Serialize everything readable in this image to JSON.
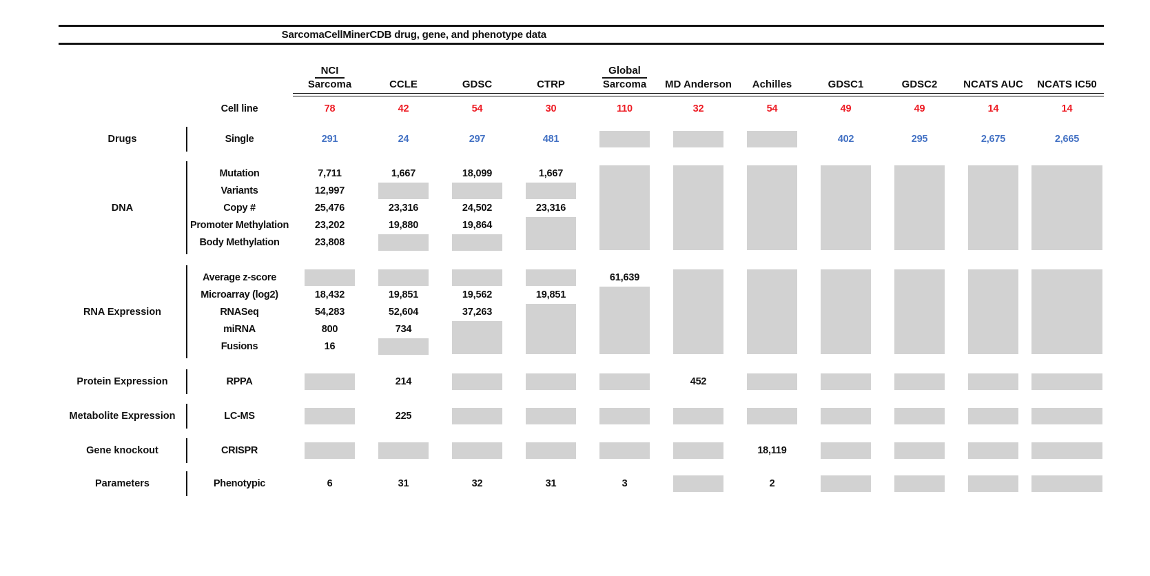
{
  "title": "SarcomaCellMinerCDB drug, gene, and phenotype data",
  "colors": {
    "cell_line_count": "#ed1c24",
    "drug_count": "#4472c4",
    "gene_count": "#111111",
    "no_data_box": "#d2d2d2",
    "rule": "#141414"
  },
  "columns": [
    {
      "id": "nci_sarcoma",
      "line1": "NCI",
      "line2": "Sarcoma"
    },
    {
      "id": "ccle",
      "line2": "CCLE"
    },
    {
      "id": "gdsc",
      "line2": "GDSC"
    },
    {
      "id": "ctrp",
      "line2": "CTRP"
    },
    {
      "id": "global_sarcoma",
      "line1": "Global",
      "line2": "Sarcoma"
    },
    {
      "id": "md_anderson",
      "line2": "MD Anderson"
    },
    {
      "id": "achilles",
      "line2": "Achilles"
    },
    {
      "id": "gdsc1",
      "line2": "GDSC1"
    },
    {
      "id": "gdsc2",
      "line2": "GDSC2"
    },
    {
      "id": "ncats_auc",
      "line2": "NCATS AUC"
    },
    {
      "id": "ncats_ic50",
      "line2": "NCATS IC50"
    }
  ],
  "cell_line_row": {
    "label": "Cell line",
    "values": [
      "78",
      "42",
      "54",
      "30",
      "110",
      "32",
      "54",
      "49",
      "49",
      "14",
      "14"
    ]
  },
  "sections": [
    {
      "group": "Drugs",
      "value_color": "blue",
      "rows": [
        "Single"
      ],
      "values": [
        [
          "291",
          "24",
          "297",
          "481",
          null,
          null,
          null,
          "402",
          "295",
          "2,675",
          "2,665"
        ]
      ]
    },
    {
      "group": "DNA",
      "rows": [
        "Mutation",
        "Variants",
        "Copy #",
        "Promoter Methylation",
        "Body Methylation"
      ],
      "values": [
        [
          "7,711",
          "1,667",
          "18,099",
          "1,667",
          null,
          null,
          null,
          null,
          null,
          null,
          null
        ],
        [
          "12,997",
          null,
          null,
          null,
          null,
          null,
          null,
          null,
          null,
          null,
          null
        ],
        [
          "25,476",
          "23,316",
          "24,502",
          "23,316",
          null,
          null,
          null,
          null,
          null,
          null,
          null
        ],
        [
          "23,202",
          "19,880",
          "19,864",
          null,
          null,
          null,
          null,
          null,
          null,
          null,
          null
        ],
        [
          "23,808",
          null,
          null,
          null,
          null,
          null,
          null,
          null,
          null,
          null,
          null
        ]
      ]
    },
    {
      "group": "RNA Expression",
      "rows": [
        "Average z-score",
        "Microarray (log2)",
        "RNASeq",
        "miRNA",
        "Fusions"
      ],
      "values": [
        [
          null,
          null,
          null,
          null,
          "61,639",
          null,
          null,
          null,
          null,
          null,
          null
        ],
        [
          "18,432",
          "19,851",
          "19,562",
          "19,851",
          null,
          null,
          null,
          null,
          null,
          null,
          null
        ],
        [
          "54,283",
          "52,604",
          "37,263",
          null,
          null,
          null,
          null,
          null,
          null,
          null,
          null
        ],
        [
          "800",
          "734",
          null,
          null,
          null,
          null,
          null,
          null,
          null,
          null,
          null
        ],
        [
          "16",
          null,
          null,
          null,
          null,
          null,
          null,
          null,
          null,
          null,
          null
        ]
      ]
    },
    {
      "group": "Protein Expression",
      "rows": [
        "RPPA"
      ],
      "values": [
        [
          null,
          "214",
          null,
          null,
          null,
          "452",
          null,
          null,
          null,
          null,
          null
        ]
      ]
    },
    {
      "group": "Metabolite Expression",
      "rows": [
        "LC-MS"
      ],
      "values": [
        [
          null,
          "225",
          null,
          null,
          null,
          null,
          null,
          null,
          null,
          null,
          null
        ]
      ]
    },
    {
      "group": "Gene knockout",
      "rows": [
        "CRISPR"
      ],
      "values": [
        [
          null,
          null,
          null,
          null,
          null,
          null,
          "18,119",
          null,
          null,
          null,
          null
        ]
      ]
    },
    {
      "group": "Parameters",
      "rows": [
        "Phenotypic"
      ],
      "values": [
        [
          "6",
          "31",
          "32",
          "31",
          "3",
          null,
          "2",
          null,
          null,
          null,
          null
        ]
      ]
    }
  ],
  "chart_data": {
    "type": "table",
    "title": "SarcomaCellMinerCDB drug, gene, and phenotype data",
    "columns": [
      "NCI Sarcoma",
      "CCLE",
      "GDSC",
      "CTRP",
      "Global Sarcoma",
      "MD Anderson",
      "Achilles",
      "GDSC1",
      "GDSC2",
      "NCATS AUC",
      "NCATS IC50"
    ],
    "cell_line_counts": [
      78,
      42,
      54,
      30,
      110,
      32,
      54,
      49,
      49,
      14,
      14
    ],
    "legend": "null means no data (gray box); drug counts shown blue, cell line counts red",
    "rows": [
      {
        "group": "Drugs",
        "label": "Single",
        "values": [
          291,
          24,
          297,
          481,
          null,
          null,
          null,
          402,
          295,
          2675,
          2665
        ]
      },
      {
        "group": "DNA",
        "label": "Mutation",
        "values": [
          7711,
          1667,
          18099,
          1667,
          null,
          null,
          null,
          null,
          null,
          null,
          null
        ]
      },
      {
        "group": "DNA",
        "label": "Variants",
        "values": [
          12997,
          null,
          null,
          null,
          null,
          null,
          null,
          null,
          null,
          null,
          null
        ]
      },
      {
        "group": "DNA",
        "label": "Copy #",
        "values": [
          25476,
          23316,
          24502,
          23316,
          null,
          null,
          null,
          null,
          null,
          null,
          null
        ]
      },
      {
        "group": "DNA",
        "label": "Promoter Methylation",
        "values": [
          23202,
          19880,
          19864,
          null,
          null,
          null,
          null,
          null,
          null,
          null,
          null
        ]
      },
      {
        "group": "DNA",
        "label": "Body Methylation",
        "values": [
          23808,
          null,
          null,
          null,
          null,
          null,
          null,
          null,
          null,
          null,
          null
        ]
      },
      {
        "group": "RNA Expression",
        "label": "Average z-score",
        "values": [
          null,
          null,
          null,
          null,
          61639,
          null,
          null,
          null,
          null,
          null,
          null
        ]
      },
      {
        "group": "RNA Expression",
        "label": "Microarray (log2)",
        "values": [
          18432,
          19851,
          19562,
          19851,
          null,
          null,
          null,
          null,
          null,
          null,
          null
        ]
      },
      {
        "group": "RNA Expression",
        "label": "RNASeq",
        "values": [
          54283,
          52604,
          37263,
          null,
          null,
          null,
          null,
          null,
          null,
          null,
          null
        ]
      },
      {
        "group": "RNA Expression",
        "label": "miRNA",
        "values": [
          800,
          734,
          null,
          null,
          null,
          null,
          null,
          null,
          null,
          null,
          null
        ]
      },
      {
        "group": "RNA Expression",
        "label": "Fusions",
        "values": [
          16,
          null,
          null,
          null,
          null,
          null,
          null,
          null,
          null,
          null,
          null
        ]
      },
      {
        "group": "Protein Expression",
        "label": "RPPA",
        "values": [
          null,
          214,
          null,
          null,
          null,
          452,
          null,
          null,
          null,
          null,
          null
        ]
      },
      {
        "group": "Metabolite Expression",
        "label": "LC-MS",
        "values": [
          null,
          225,
          null,
          null,
          null,
          null,
          null,
          null,
          null,
          null,
          null
        ]
      },
      {
        "group": "Gene knockout",
        "label": "CRISPR",
        "values": [
          null,
          null,
          null,
          null,
          null,
          null,
          18119,
          null,
          null,
          null,
          null
        ]
      },
      {
        "group": "Parameters",
        "label": "Phenotypic",
        "values": [
          6,
          31,
          32,
          31,
          3,
          null,
          2,
          null,
          null,
          null,
          null
        ]
      }
    ]
  }
}
